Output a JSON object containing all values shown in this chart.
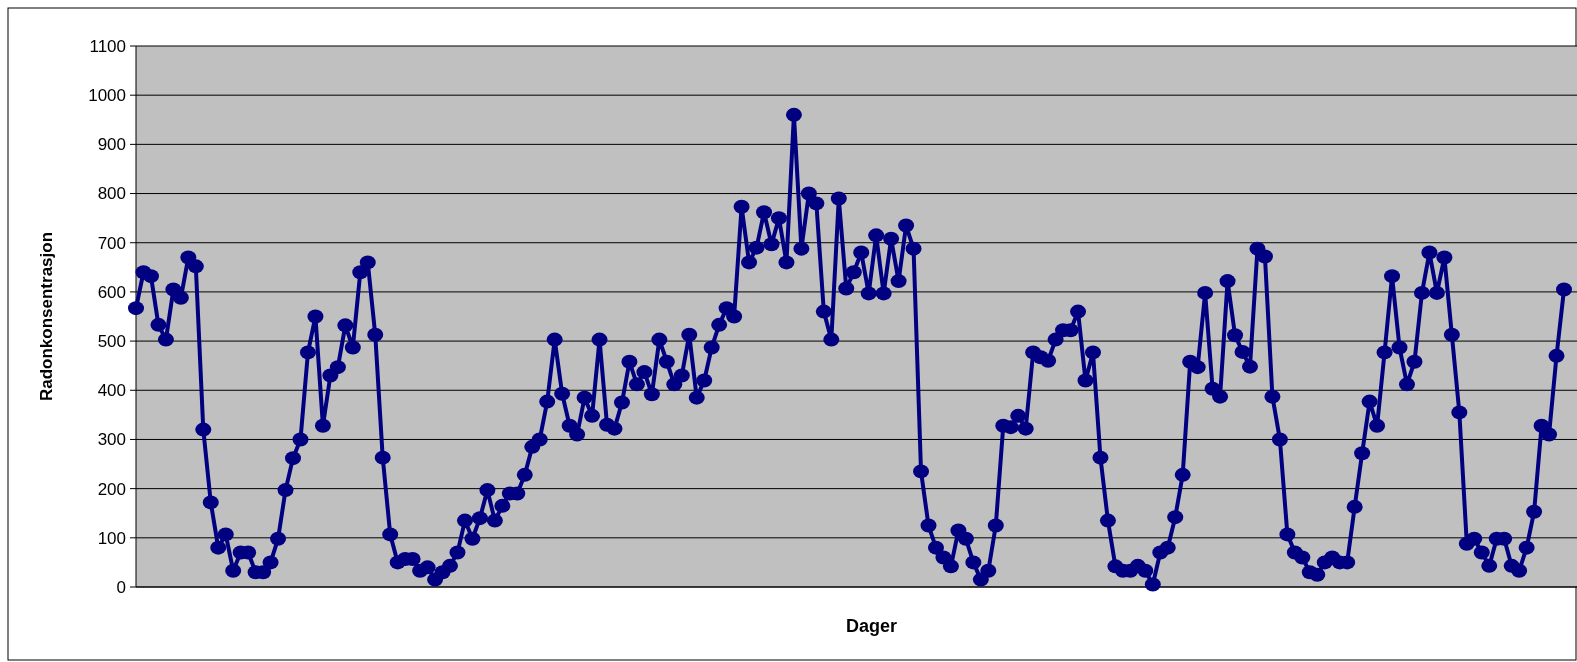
{
  "chart_data": {
    "type": "line",
    "xlabel": "Dager",
    "ylabel": "Radonkonsentrasjon",
    "categories": [
      null,
      null,
      null,
      null,
      null,
      null,
      null,
      null,
      null,
      null,
      null,
      null,
      null,
      null,
      null,
      null,
      null,
      null,
      null,
      null,
      null,
      null,
      null,
      null,
      null,
      null,
      null,
      null,
      null,
      null,
      null,
      null,
      null,
      null,
      null,
      null,
      null,
      null,
      null,
      null,
      null,
      null,
      null,
      null,
      null,
      null,
      null,
      null,
      null,
      null,
      null,
      null,
      null,
      null,
      null,
      null,
      null,
      null,
      null,
      null,
      null,
      null,
      null,
      null,
      null,
      null,
      null,
      null,
      null,
      null,
      null,
      null,
      null,
      null,
      null,
      null,
      null,
      null,
      null,
      null,
      null,
      null,
      null,
      null,
      null,
      null,
      null,
      null,
      null,
      null,
      null,
      null,
      null,
      null,
      null,
      null,
      null,
      null,
      null,
      null,
      null,
      null,
      null,
      null,
      null,
      null,
      null,
      null,
      null,
      null,
      null,
      null,
      null,
      null,
      null,
      null,
      null,
      null,
      null,
      null,
      null,
      null,
      null,
      null,
      null,
      null,
      null,
      null,
      null,
      null,
      null,
      null,
      null,
      null,
      null,
      null,
      null,
      null,
      null,
      null,
      null,
      null,
      null,
      null,
      null,
      null,
      null,
      null,
      null,
      null,
      null,
      null,
      null,
      null,
      null,
      null,
      null,
      null,
      null,
      null,
      null,
      null,
      null,
      null,
      null,
      null,
      null,
      null,
      null,
      null,
      null,
      null,
      null,
      null,
      null,
      null,
      null,
      null,
      null,
      null,
      null,
      null,
      null,
      null,
      null,
      null,
      null,
      null,
      null,
      null,
      null,
      null
    ],
    "series": [
      {
        "color": "#000080",
        "values": [
          567,
          640,
          632,
          533,
          503,
          605,
          588,
          670,
          652,
          320,
          172,
          80,
          107,
          33,
          70,
          70,
          30,
          30,
          50,
          98,
          197,
          262,
          300,
          477,
          550,
          328,
          430,
          447,
          532,
          487,
          640,
          660,
          513,
          263,
          107,
          50,
          57,
          57,
          33,
          40,
          15,
          30,
          43,
          70,
          135,
          98,
          140,
          197,
          135,
          165,
          190,
          190,
          228,
          285,
          300,
          377,
          503,
          393,
          328,
          310,
          385,
          348,
          503,
          330,
          322,
          375,
          458,
          412,
          437,
          392,
          503,
          458,
          412,
          430,
          513,
          385,
          420,
          487,
          533,
          567,
          550,
          773,
          660,
          690,
          762,
          697,
          750,
          660,
          960,
          688,
          800,
          780,
          560,
          503,
          790,
          607,
          640,
          680,
          597,
          715,
          597,
          708,
          622,
          735,
          688,
          235,
          125,
          80,
          60,
          42,
          115,
          98,
          50,
          15,
          33,
          125,
          328,
          325,
          348,
          322,
          477,
          467,
          460,
          503,
          522,
          522,
          560,
          420,
          477,
          263,
          135,
          42,
          33,
          33,
          43,
          33,
          5,
          70,
          80,
          142,
          228,
          458,
          447,
          598,
          403,
          387,
          622,
          512,
          478,
          448,
          688,
          672,
          387,
          300,
          107,
          70,
          60,
          30,
          25,
          50,
          60,
          50,
          50,
          163,
          272,
          377,
          328,
          477,
          632,
          487,
          412,
          458,
          598,
          680,
          598,
          670,
          513,
          355,
          88,
          98,
          70,
          43,
          98,
          98,
          43,
          33,
          80,
          153,
          328,
          310,
          470,
          605
        ]
      }
    ],
    "ylim": [
      0,
      1100
    ],
    "yticks": [
      0,
      100,
      200,
      300,
      400,
      500,
      600,
      700,
      800,
      900,
      1000,
      1100
    ],
    "grid": "y",
    "marker": "circle",
    "line_style": "solid"
  }
}
